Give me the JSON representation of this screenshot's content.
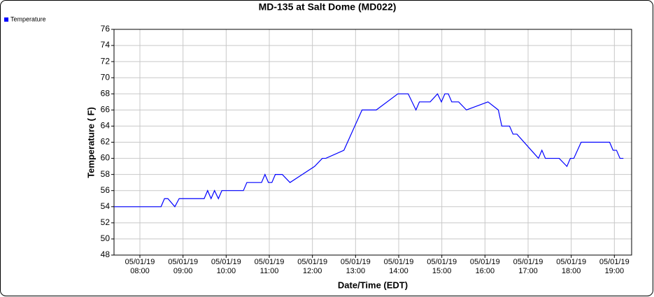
{
  "chart_data": {
    "type": "line",
    "title": "MD-135 at Salt Dome (MD022)",
    "x_label": "Date/Time (EDT)",
    "y_label": "Temperature ( F)",
    "x": [
      7.4,
      8.49,
      8.57,
      8.65,
      8.81,
      8.91,
      9.49,
      9.57,
      9.65,
      9.73,
      9.82,
      9.9,
      10.4,
      10.48,
      10.82,
      10.9,
      10.98,
      11.06,
      11.14,
      11.3,
      11.48,
      12.05,
      12.23,
      12.31,
      12.73,
      13.15,
      13.48,
      13.98,
      14.22,
      14.4,
      14.48,
      14.73,
      14.9,
      14.99,
      15.07,
      15.15,
      15.23,
      15.39,
      15.57,
      16.07,
      16.31,
      16.39,
      16.57,
      16.65,
      16.74,
      17.24,
      17.32,
      17.4,
      17.72,
      17.9,
      17.98,
      18.06,
      18.23,
      18.89,
      18.97,
      19.05,
      19.13,
      19.21
    ],
    "series": [
      {
        "name": "Temperature",
        "color": "#0000ff",
        "values": [
          54,
          54,
          55,
          55,
          54,
          55,
          55,
          56,
          55,
          56,
          55,
          56,
          56,
          57,
          57,
          58,
          57,
          57,
          58,
          58,
          57,
          59,
          60,
          60,
          61,
          66,
          66,
          68,
          68,
          66,
          67,
          67,
          68,
          67,
          68,
          68,
          67,
          67,
          66,
          67,
          66,
          64,
          64,
          63,
          63,
          60,
          61,
          60,
          60,
          59,
          60,
          60,
          62,
          62,
          61,
          61,
          60,
          60
        ]
      }
    ],
    "xlim": [
      7.4,
      19.4
    ],
    "xticks": [
      {
        "value": 8,
        "label": "05/01/19\n08:00"
      },
      {
        "value": 9,
        "label": "05/01/19\n09:00"
      },
      {
        "value": 10,
        "label": "05/01/19\n10:00"
      },
      {
        "value": 11,
        "label": "05/01/19\n11:00"
      },
      {
        "value": 12,
        "label": "05/01/19\n12:00"
      },
      {
        "value": 13,
        "label": "05/01/19\n13:00"
      },
      {
        "value": 14,
        "label": "05/01/19\n14:00"
      },
      {
        "value": 15,
        "label": "05/01/19\n15:00"
      },
      {
        "value": 16,
        "label": "05/01/19\n16:00"
      },
      {
        "value": 17,
        "label": "05/01/19\n17:00"
      },
      {
        "value": 18,
        "label": "05/01/19\n18:00"
      },
      {
        "value": 19,
        "label": "05/01/19\n19:00"
      }
    ],
    "ylim": [
      48,
      76
    ],
    "yticks": [
      48,
      50,
      52,
      54,
      56,
      58,
      60,
      62,
      64,
      66,
      68,
      70,
      72,
      74,
      76
    ],
    "grid": true,
    "legend": "top-left"
  }
}
